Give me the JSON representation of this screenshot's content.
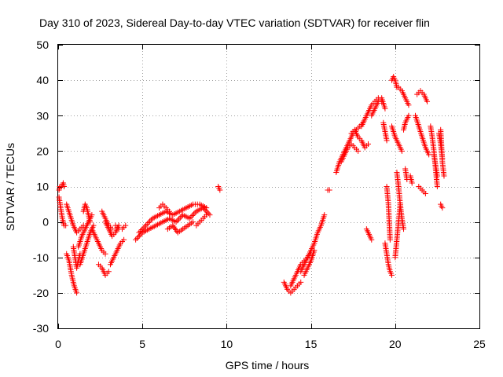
{
  "chart_data": {
    "type": "scatter",
    "title": "Day 310 of 2023, Sidereal Day-to-day VTEC variation (SDTVAR) for receiver flin",
    "xlabel": "GPS time / hours",
    "ylabel": "SDTVAR / TECUs",
    "xlim": [
      0,
      25
    ],
    "ylim": [
      -30,
      50
    ],
    "xticks": [
      0,
      5,
      10,
      15,
      20,
      25
    ],
    "yticks": [
      -30,
      -20,
      -10,
      0,
      10,
      20,
      30,
      40,
      50
    ],
    "grid": true,
    "marker": "+",
    "color": "#ff0000",
    "segments": [
      {
        "x": [
          0.0,
          0.1,
          0.2,
          0.3,
          0.35
        ],
        "y": [
          8,
          10,
          10,
          11,
          10
        ]
      },
      {
        "x": [
          0.05,
          0.15,
          0.25,
          0.35,
          0.45
        ],
        "y": [
          7,
          4,
          1,
          -1,
          -1
        ]
      },
      {
        "x": [
          0.5,
          0.7,
          0.9,
          1.1,
          1.3,
          1.5
        ],
        "y": [
          5,
          2,
          -1,
          -3,
          -2,
          -1
        ]
      },
      {
        "x": [
          0.5,
          0.65,
          0.8,
          0.95,
          1.1
        ],
        "y": [
          -9,
          -11,
          -15,
          -18,
          -20
        ]
      },
      {
        "x": [
          0.9,
          1.0,
          1.1,
          1.2,
          1.3
        ],
        "y": [
          -7,
          -10,
          -13,
          -11,
          -9
        ]
      },
      {
        "x": [
          1.2,
          1.4,
          1.6,
          1.8,
          2.0
        ],
        "y": [
          -7,
          -4,
          -2,
          0,
          2
        ]
      },
      {
        "x": [
          1.3,
          1.5,
          1.7,
          1.9,
          2.1
        ],
        "y": [
          -12,
          -9,
          -6,
          -3,
          -1
        ]
      },
      {
        "x": [
          1.5,
          1.6,
          1.7,
          1.8,
          1.9
        ],
        "y": [
          3,
          5,
          4,
          2,
          0
        ]
      },
      {
        "x": [
          2.0,
          2.2,
          2.4,
          2.6,
          2.8
        ],
        "y": [
          -2,
          -4,
          -6,
          -8,
          -9
        ]
      },
      {
        "x": [
          2.4,
          2.6,
          2.8,
          3.0
        ],
        "y": [
          -12,
          -13,
          -15,
          -14
        ]
      },
      {
        "x": [
          2.6,
          2.8,
          3.0,
          3.2
        ],
        "y": [
          3,
          1,
          -1,
          -2
        ]
      },
      {
        "x": [
          2.8,
          3.0,
          3.2,
          3.4,
          3.6
        ],
        "y": [
          0,
          -2,
          -4,
          -3,
          -1
        ]
      },
      {
        "x": [
          3.1,
          3.3,
          3.5,
          3.7,
          3.9
        ],
        "y": [
          -12,
          -10,
          -8,
          -6,
          -5
        ]
      },
      {
        "x": [
          3.4,
          3.6,
          3.8,
          4.0
        ],
        "y": [
          -1,
          -2,
          -2,
          -1
        ]
      },
      {
        "x": [
          4.6,
          5.0,
          5.4,
          5.8,
          6.2,
          6.6,
          7.0,
          7.4,
          7.8,
          8.2,
          8.6,
          9.0
        ],
        "y": [
          -5,
          -3,
          -2,
          -1,
          0,
          1,
          0,
          2,
          1,
          3,
          4,
          2
        ]
      },
      {
        "x": [
          4.8,
          5.2,
          5.6,
          6.0,
          6.4,
          6.8,
          7.2,
          7.6,
          8.0,
          8.4,
          8.8
        ],
        "y": [
          -3,
          -1,
          1,
          2,
          3,
          2,
          3,
          4,
          5,
          5,
          4
        ]
      },
      {
        "x": [
          6.0,
          6.2,
          6.4,
          6.6
        ],
        "y": [
          4,
          5,
          4,
          3
        ]
      },
      {
        "x": [
          6.5,
          6.8,
          7.1,
          7.4,
          7.7,
          8.0
        ],
        "y": [
          -2,
          -1,
          -3,
          -2,
          -1,
          0
        ]
      },
      {
        "x": [
          8.2,
          8.4,
          8.6,
          8.8
        ],
        "y": [
          -1,
          0,
          1,
          2
        ]
      },
      {
        "x": [
          9.5,
          9.6
        ],
        "y": [
          10,
          9
        ]
      },
      {
        "x": [
          13.4,
          13.6,
          13.8,
          14.0,
          14.2,
          14.4
        ],
        "y": [
          -17,
          -19,
          -20,
          -19,
          -18,
          -17
        ]
      },
      {
        "x": [
          13.8,
          14.0,
          14.2,
          14.4,
          14.6,
          14.8,
          15.0
        ],
        "y": [
          -18,
          -16,
          -14,
          -12,
          -11,
          -10,
          -9
        ]
      },
      {
        "x": [
          14.4,
          14.6,
          14.8,
          15.0,
          15.2,
          15.4,
          15.6,
          15.8
        ],
        "y": [
          -14,
          -12,
          -10,
          -8,
          -6,
          -3,
          -1,
          2
        ]
      },
      {
        "x": [
          14.6,
          14.8,
          15.0,
          15.2
        ],
        "y": [
          -15,
          -13,
          -11,
          -8
        ]
      },
      {
        "x": [
          16.0,
          16.1
        ],
        "y": [
          9,
          9
        ]
      },
      {
        "x": [
          16.5,
          16.7,
          16.9,
          17.1,
          17.3,
          17.5,
          17.7,
          17.9,
          18.1
        ],
        "y": [
          14,
          17,
          19,
          21,
          23,
          25,
          26,
          27,
          28
        ]
      },
      {
        "x": [
          16.8,
          17.0,
          17.2,
          17.4,
          17.6,
          17.8
        ],
        "y": [
          17,
          19,
          21,
          22,
          21,
          20
        ]
      },
      {
        "x": [
          17.4,
          17.6,
          17.8,
          18.0,
          18.2,
          18.4
        ],
        "y": [
          25,
          26,
          24,
          23,
          21,
          22
        ]
      },
      {
        "x": [
          18.0,
          18.2,
          18.4,
          18.6,
          18.8,
          19.0,
          19.2
        ],
        "y": [
          27,
          29,
          31,
          33,
          34,
          35,
          34
        ]
      },
      {
        "x": [
          18.6,
          18.8,
          19.0,
          19.2,
          19.4
        ],
        "y": [
          30,
          32,
          34,
          35,
          32
        ]
      },
      {
        "x": [
          18.3,
          18.4,
          18.5,
          18.6
        ],
        "y": [
          -2,
          -3,
          -4,
          -5
        ]
      },
      {
        "x": [
          19.3,
          19.5
        ],
        "y": [
          28,
          23
        ]
      },
      {
        "x": [
          19.4,
          19.5,
          19.6,
          19.7,
          19.8
        ],
        "y": [
          -6,
          -9,
          -12,
          -14,
          -15
        ]
      },
      {
        "x": [
          19.5,
          19.6,
          19.7
        ],
        "y": [
          10,
          5,
          -5
        ]
      },
      {
        "x": [
          19.8,
          19.9,
          20.0,
          20.1
        ],
        "y": [
          40,
          41,
          40,
          38
        ]
      },
      {
        "x": [
          19.8,
          20.0,
          20.2,
          20.4
        ],
        "y": [
          27,
          24,
          22,
          20
        ]
      },
      {
        "x": [
          20.0,
          20.1,
          20.2,
          20.3
        ],
        "y": [
          -10,
          -5,
          0,
          5
        ]
      },
      {
        "x": [
          20.1,
          20.2,
          20.3,
          20.4,
          20.5
        ],
        "y": [
          14,
          10,
          5,
          1,
          -2
        ]
      },
      {
        "x": [
          20.2,
          20.4,
          20.6,
          20.8
        ],
        "y": [
          38,
          37,
          35,
          33
        ]
      },
      {
        "x": [
          20.5,
          20.6,
          20.7,
          20.8
        ],
        "y": [
          26,
          28,
          29,
          30
        ]
      },
      {
        "x": [
          20.6,
          20.7
        ],
        "y": [
          15,
          12
        ]
      },
      {
        "x": [
          20.9,
          21.0
        ],
        "y": [
          13,
          11
        ]
      },
      {
        "x": [
          21.3,
          21.5,
          21.7,
          21.9
        ],
        "y": [
          36,
          37,
          36,
          34
        ]
      },
      {
        "x": [
          21.2,
          21.4,
          21.6,
          21.8,
          22.0
        ],
        "y": [
          30,
          27,
          24,
          21,
          19
        ]
      },
      {
        "x": [
          21.4,
          21.6,
          21.8
        ],
        "y": [
          10,
          9,
          8
        ]
      },
      {
        "x": [
          22.1,
          22.2,
          22.3,
          22.4,
          22.5
        ],
        "y": [
          27,
          24,
          20,
          15,
          10
        ]
      },
      {
        "x": [
          22.3,
          22.4,
          22.5
        ],
        "y": [
          19,
          16,
          13
        ]
      },
      {
        "x": [
          22.6,
          22.7,
          22.8
        ],
        "y": [
          25,
          22,
          18
        ]
      },
      {
        "x": [
          22.7,
          22.8,
          22.9
        ],
        "y": [
          26,
          17,
          13
        ]
      },
      {
        "x": [
          22.7,
          22.8
        ],
        "y": [
          5,
          4
        ]
      }
    ]
  }
}
